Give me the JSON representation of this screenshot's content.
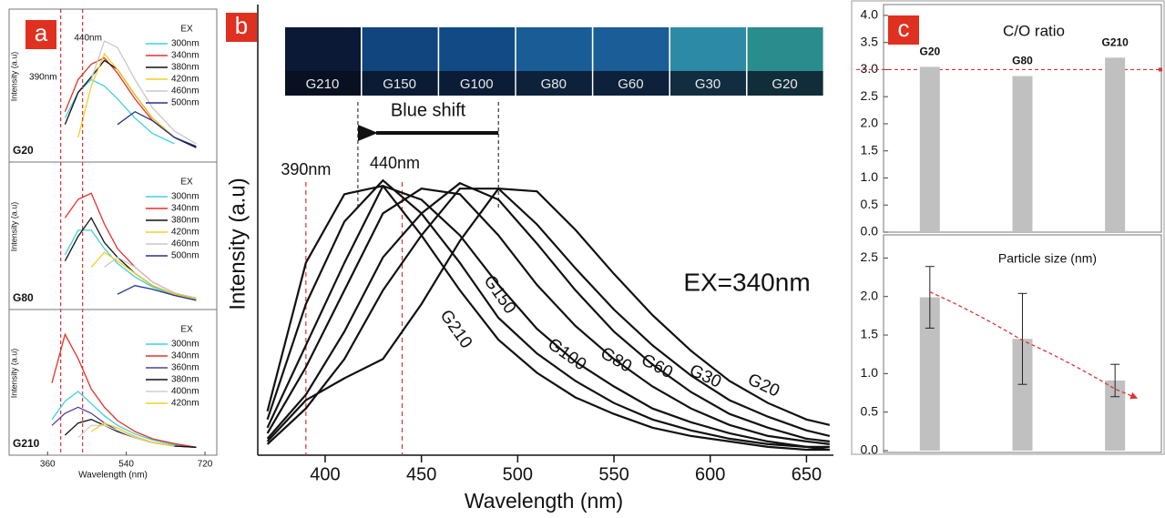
{
  "chart_data": [
    {
      "type": "line",
      "panel": "a",
      "title": "G20",
      "ylabel": "Intensity (a.u)",
      "legend_title": "EX",
      "x": [
        370,
        400,
        430,
        460,
        490,
        520,
        560,
        600,
        650,
        700
      ],
      "xlim": [
        272,
        747
      ],
      "ylim": [
        0,
        1.05
      ],
      "reference_lines": [
        {
          "value": 390,
          "label": "390nm",
          "color": "#e03030"
        },
        {
          "value": 440,
          "label": "440nm",
          "color": "#e03030"
        }
      ],
      "series": [
        {
          "name": "300nm",
          "color": "#3fd0e0",
          "values": [
            null,
            0.3,
            0.5,
            0.6,
            0.55,
            0.45,
            0.3,
            0.18,
            0.1,
            null
          ]
        },
        {
          "name": "340nm",
          "color": "#e8302a",
          "values": [
            null,
            0.35,
            0.6,
            0.72,
            0.77,
            0.65,
            0.45,
            0.28,
            0.15,
            0.07
          ]
        },
        {
          "name": "380nm",
          "color": "#111111",
          "values": [
            null,
            0.25,
            0.5,
            0.62,
            0.75,
            0.68,
            0.48,
            0.3,
            0.15,
            0.07
          ]
        },
        {
          "name": "420nm",
          "color": "#f0d020",
          "values": [
            null,
            null,
            0.15,
            0.55,
            0.8,
            0.68,
            0.48,
            0.3,
            0.15,
            null
          ]
        },
        {
          "name": "460nm",
          "color": "#c8c8c8",
          "values": [
            null,
            null,
            null,
            0.6,
            0.9,
            0.85,
            0.6,
            0.38,
            0.2,
            0.1
          ]
        },
        {
          "name": "500nm",
          "color": "#23338a",
          "values": [
            null,
            null,
            null,
            null,
            null,
            0.25,
            0.35,
            0.28,
            0.15,
            0.08
          ]
        }
      ]
    },
    {
      "type": "line",
      "title": "G80",
      "ylabel": "Intensity (a.u)",
      "legend_title": "EX",
      "x": [
        370,
        400,
        430,
        460,
        490,
        520,
        560,
        600,
        650,
        700
      ],
      "xlim": [
        272,
        747
      ],
      "ylim": [
        0,
        1.05
      ],
      "series": [
        {
          "name": "300nm",
          "color": "#3fd0e0",
          "values": [
            null,
            0.4,
            0.6,
            0.6,
            0.45,
            0.33,
            0.22,
            0.14,
            0.07,
            0.03
          ]
        },
        {
          "name": "340nm",
          "color": "#e8302a",
          "values": [
            null,
            0.7,
            0.85,
            0.9,
            0.65,
            0.45,
            0.3,
            0.18,
            0.09,
            0.04
          ]
        },
        {
          "name": "380nm",
          "color": "#111111",
          "values": [
            null,
            0.35,
            0.55,
            0.7,
            0.5,
            0.38,
            0.25,
            0.15,
            0.08,
            0.04
          ]
        },
        {
          "name": "420nm",
          "color": "#f0d020",
          "values": [
            null,
            null,
            null,
            0.3,
            0.42,
            0.35,
            0.25,
            0.15,
            0.08,
            0.04
          ]
        },
        {
          "name": "460nm",
          "color": "#c8c8c8",
          "values": [
            null,
            null,
            null,
            null,
            0.3,
            0.38,
            0.3,
            0.18,
            0.09,
            0.05
          ]
        },
        {
          "name": "500nm",
          "color": "#23338a",
          "values": [
            null,
            null,
            null,
            null,
            null,
            0.08,
            0.15,
            0.12,
            0.07,
            0.03
          ]
        }
      ]
    },
    {
      "type": "line",
      "title": "G210",
      "ylabel": "Intensity (a.u)",
      "legend_title": "EX",
      "xlabel": "Wavelength (nm)",
      "x": [
        370,
        400,
        430,
        460,
        490,
        520,
        560,
        600,
        650,
        700
      ],
      "xlim": [
        272,
        747
      ],
      "xticks": [
        360,
        540,
        720
      ],
      "ylim": [
        0,
        1.05
      ],
      "series": [
        {
          "name": "300nm",
          "color": "#3fd0e0",
          "values": [
            0.25,
            0.4,
            0.48,
            0.38,
            0.28,
            0.2,
            0.13,
            0.08,
            0.04,
            0.02
          ]
        },
        {
          "name": "340nm",
          "color": "#e8302a",
          "values": [
            0.55,
            0.95,
            0.75,
            0.5,
            0.35,
            0.24,
            0.15,
            0.09,
            0.05,
            0.02
          ]
        },
        {
          "name": "360nm",
          "color": "#5a3d9e",
          "values": [
            0.2,
            0.3,
            0.35,
            0.3,
            0.22,
            0.16,
            0.1,
            0.06,
            0.03,
            0.02
          ]
        },
        {
          "name": "380nm",
          "color": "#111111",
          "values": [
            null,
            0.12,
            0.22,
            0.25,
            0.2,
            0.15,
            0.1,
            0.06,
            0.03,
            0.02
          ]
        },
        {
          "name": "400nm",
          "color": "#d0d0d0",
          "values": [
            null,
            null,
            0.1,
            0.2,
            0.2,
            0.16,
            0.1,
            0.06,
            0.03,
            null
          ]
        },
        {
          "name": "420nm",
          "color": "#f0d020",
          "values": [
            null,
            null,
            null,
            0.15,
            0.22,
            0.18,
            0.11,
            0.06,
            0.03,
            null
          ]
        }
      ]
    },
    {
      "type": "line",
      "panel": "b",
      "ylabel": "Intensity (a.u)",
      "xlabel": "Wavelength (nm)",
      "annotation": "EX=340nm",
      "x": [
        370,
        390,
        410,
        430,
        450,
        470,
        490,
        510,
        530,
        550,
        570,
        590,
        610,
        630,
        650,
        662
      ],
      "xlim": [
        365,
        664
      ],
      "xticks": [
        400,
        450,
        500,
        550,
        600,
        650
      ],
      "ylim": [
        0,
        1.64
      ],
      "color": "#111111",
      "reference_lines": [
        {
          "value": 390,
          "label": "390nm",
          "color": "#e03030"
        },
        {
          "value": 440,
          "label": "440nm",
          "color": "#e03030"
        }
      ],
      "shift": {
        "label": "Blue shift",
        "from": 490,
        "to": 417
      },
      "series": [
        {
          "name": "G210",
          "values": [
            0.16,
            0.7,
            0.95,
            0.98,
            0.8,
            0.6,
            0.42,
            0.3,
            0.21,
            0.15,
            0.1,
            0.07,
            0.05,
            0.03,
            0.02,
            0.02
          ]
        },
        {
          "name": "G150",
          "values": [
            0.13,
            0.55,
            0.85,
            1.0,
            0.88,
            0.7,
            0.5,
            0.37,
            0.27,
            0.19,
            0.13,
            0.09,
            0.06,
            0.04,
            0.03,
            0.02
          ]
        },
        {
          "name": "G100",
          "values": [
            0.1,
            0.4,
            0.7,
            0.98,
            0.93,
            0.8,
            0.62,
            0.46,
            0.34,
            0.25,
            0.17,
            0.12,
            0.08,
            0.05,
            0.03,
            0.03
          ]
        },
        {
          "name": "G80",
          "values": [
            0.08,
            0.32,
            0.6,
            0.88,
            0.97,
            0.95,
            0.8,
            0.62,
            0.47,
            0.35,
            0.25,
            0.17,
            0.11,
            0.07,
            0.05,
            0.04
          ]
        },
        {
          "name": "G60",
          "values": [
            0.06,
            0.22,
            0.45,
            0.72,
            0.88,
            0.99,
            0.93,
            0.77,
            0.6,
            0.45,
            0.33,
            0.23,
            0.15,
            0.1,
            0.06,
            0.05
          ]
        },
        {
          "name": "G30",
          "values": [
            0.04,
            0.17,
            0.35,
            0.6,
            0.8,
            0.97,
            0.97,
            0.84,
            0.68,
            0.53,
            0.4,
            0.29,
            0.2,
            0.14,
            0.09,
            0.07
          ]
        },
        {
          "name": "G20",
          "values": [
            0.05,
            0.2,
            0.28,
            0.35,
            0.55,
            0.78,
            0.97,
            0.96,
            0.82,
            0.66,
            0.51,
            0.38,
            0.27,
            0.19,
            0.13,
            0.11
          ]
        }
      ]
    },
    {
      "type": "bar",
      "panel": "c",
      "title": "C/O ratio",
      "categories": [
        "G20",
        "G80",
        "G210"
      ],
      "values": [
        3.05,
        2.88,
        3.22
      ],
      "color": "#c0c0c0",
      "ylim": [
        0,
        4.2
      ],
      "yticks": [
        {
          "value": 0,
          "label": "0.0"
        },
        0.5,
        {
          "value": 1,
          "label": "1.0"
        },
        1.5,
        {
          "value": 2,
          "label": "2.0"
        },
        2.5,
        {
          "value": 3,
          "label": "3.0"
        },
        3.5,
        {
          "value": 4,
          "label": "4.0"
        }
      ],
      "reference_line": {
        "value": 3,
        "color": "#e03030"
      }
    },
    {
      "type": "bar",
      "title": "Particle size (nm)",
      "categories": [
        null,
        null,
        null
      ],
      "values": [
        1.99,
        1.45,
        0.91
      ],
      "errors": [
        0.4,
        0.59,
        0.21
      ],
      "color": "#c0c0c0",
      "ylim": [
        0,
        2.8
      ],
      "yticks": [
        {
          "value": 0,
          "label": "0.0"
        },
        0.5,
        {
          "value": 1,
          "label": "1.0"
        },
        1.5,
        {
          "value": 2,
          "label": "2.0"
        },
        2.5
      ],
      "trend": {
        "color": "#e03030",
        "values": [
          2.06,
          1.43,
          0.8
        ]
      }
    }
  ]
}
